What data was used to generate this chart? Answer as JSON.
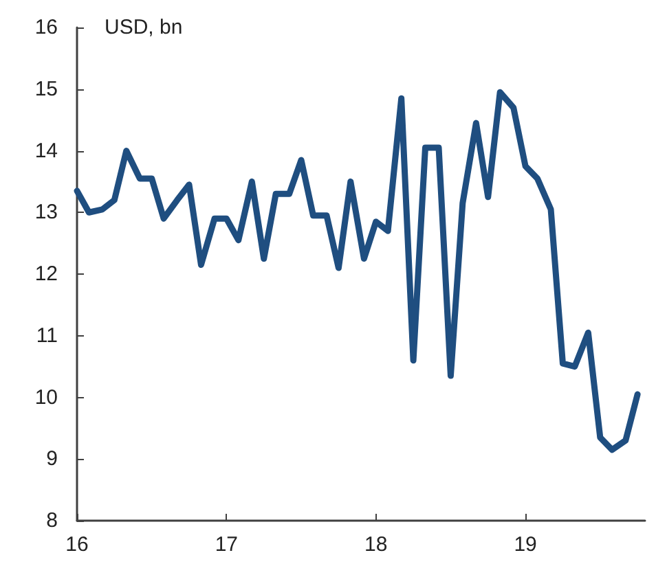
{
  "chart_data": {
    "type": "line",
    "ylabel": "USD, bn",
    "x": [
      16,
      16.08,
      16.17,
      16.25,
      16.33,
      16.42,
      16.5,
      16.58,
      16.67,
      16.75,
      16.83,
      16.92,
      17,
      17.08,
      17.17,
      17.25,
      17.33,
      17.42,
      17.5,
      17.58,
      17.67,
      17.75,
      17.83,
      17.92,
      18,
      18.08,
      18.17,
      18.25,
      18.33,
      18.42,
      18.5,
      18.58,
      18.67,
      18.75,
      18.83,
      18.92,
      19,
      19.08,
      19.17,
      19.25,
      19.33,
      19.42,
      19.5,
      19.58,
      19.67,
      19.75
    ],
    "series": [
      {
        "color": "#1f4e80",
        "values": [
          13.35,
          13.0,
          13.05,
          13.2,
          14.0,
          13.55,
          13.55,
          12.9,
          13.2,
          13.45,
          12.15,
          12.9,
          12.9,
          12.55,
          13.5,
          12.25,
          13.3,
          13.3,
          13.85,
          12.95,
          12.95,
          12.1,
          13.5,
          12.25,
          12.85,
          12.7,
          14.85,
          10.6,
          14.05,
          14.05,
          10.35,
          13.15,
          14.45,
          13.25,
          14.95,
          14.7,
          13.75,
          13.55,
          13.05,
          10.55,
          10.5,
          11.05,
          9.35,
          9.15,
          9.3,
          10.05
        ]
      }
    ],
    "xlim": [
      16,
      19.8
    ],
    "xticks": [
      16,
      17,
      18,
      19
    ],
    "ylim": [
      8,
      16
    ],
    "yticks": [
      8,
      9,
      10,
      11,
      12,
      13,
      14,
      15,
      16
    ],
    "grid": false,
    "marker": "none",
    "line_style": "solid"
  }
}
